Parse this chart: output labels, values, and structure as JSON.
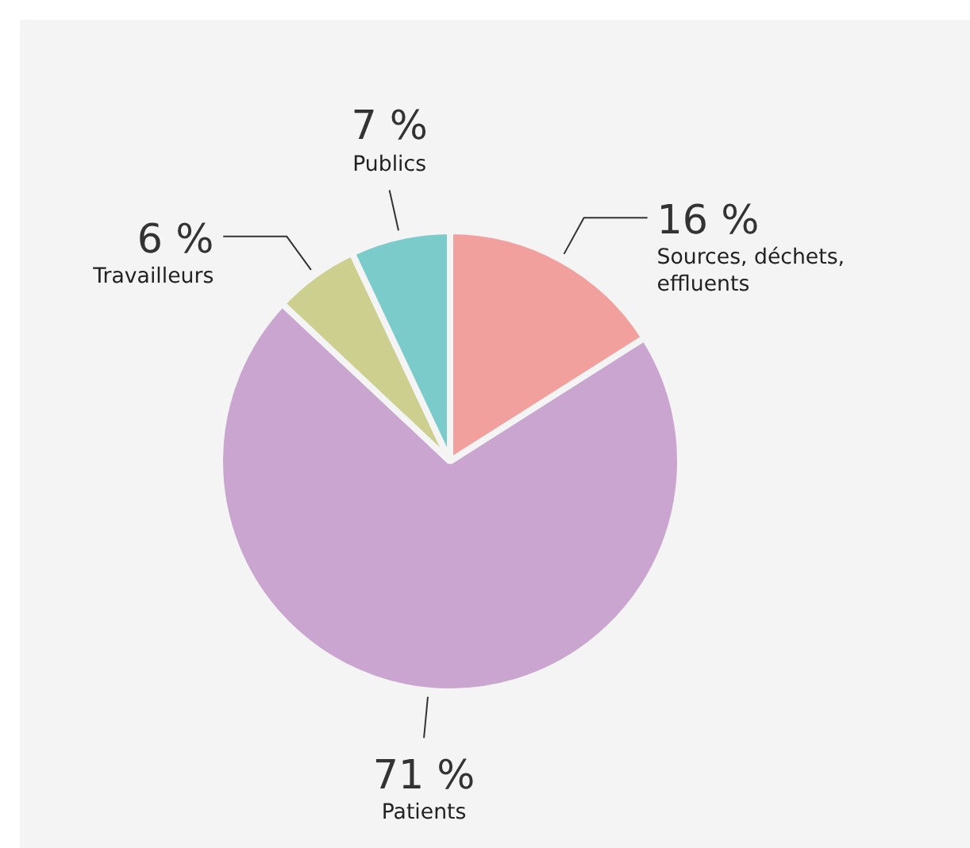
{
  "chart_data": {
    "type": "pie",
    "categories": [
      "Sources, déchets, effluents",
      "Patients",
      "Travailleurs",
      "Publics"
    ],
    "values": [
      16,
      71,
      6,
      7
    ],
    "colors": [
      "#f2a09d",
      "#c9a5cf",
      "#cdcf8e",
      "#7ccbcb"
    ],
    "value_labels": [
      "16 %",
      "71 %",
      "6 %",
      "7 %"
    ]
  }
}
